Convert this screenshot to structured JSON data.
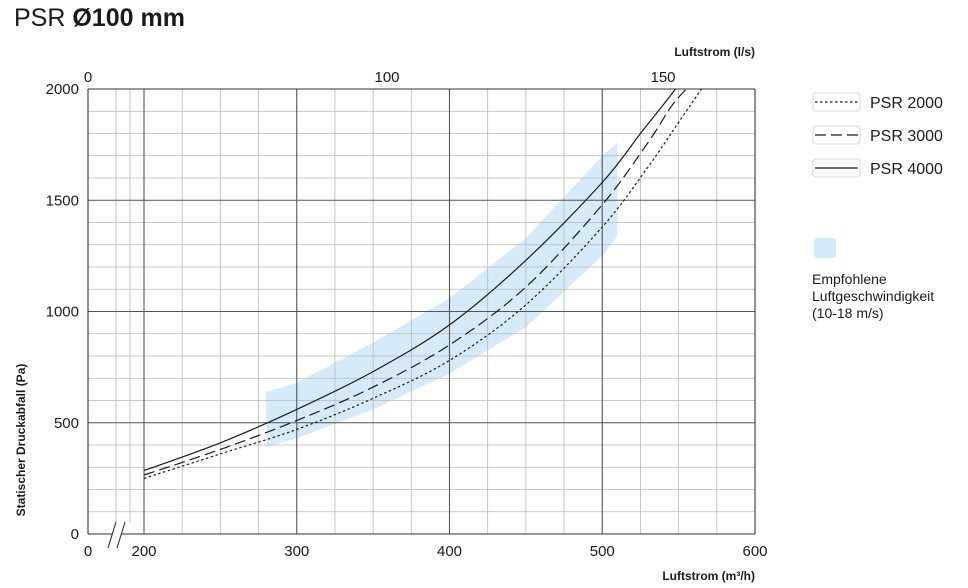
{
  "title": {
    "prefix": "PSR",
    "main": "Ø100 mm"
  },
  "chart_data": {
    "type": "line",
    "xlabel": "Luftstrom (m³/h)",
    "x2label": "Luftstrom (l/s)",
    "ylabel": "Statischer Druckabfall (Pa)",
    "xlim": [
      0,
      600
    ],
    "x_broken_below": 200,
    "ylim": [
      0,
      2000
    ],
    "x_ticks": [
      "0",
      "200",
      "300",
      "400",
      "500",
      "600"
    ],
    "x2_ticks": [
      "0",
      "100",
      "150"
    ],
    "y_ticks": [
      "0",
      "500",
      "1000",
      "1500",
      "2000"
    ],
    "grid": true,
    "legend_position": "right",
    "series": [
      {
        "name": "PSR 2000",
        "style": "dotted",
        "color": "#1a1a1a",
        "x": [
          200,
          250,
          300,
          350,
          400,
          450,
          500,
          530,
          550,
          565
        ],
        "y": [
          250,
          360,
          470,
          610,
          780,
          1030,
          1380,
          1650,
          1850,
          2000
        ]
      },
      {
        "name": "PSR 3000",
        "style": "dashed",
        "color": "#1a1a1a",
        "x": [
          200,
          250,
          300,
          350,
          400,
          450,
          500,
          530,
          545,
          555
        ],
        "y": [
          265,
          380,
          510,
          660,
          850,
          1110,
          1480,
          1760,
          1920,
          2000
        ]
      },
      {
        "name": "PSR 4000",
        "style": "solid",
        "color": "#1a1a1a",
        "x": [
          200,
          250,
          300,
          350,
          400,
          450,
          500,
          525,
          540,
          548
        ],
        "y": [
          285,
          410,
          560,
          730,
          940,
          1230,
          1580,
          1800,
          1930,
          2000
        ]
      }
    ],
    "band": {
      "label_lines": [
        "Empfohlene",
        "Luftgeschwindigkeit",
        "(10-18 m/s)"
      ],
      "color": "#d6ebf9",
      "x": [
        280,
        300,
        350,
        400,
        450,
        500,
        510
      ],
      "y_low": [
        390,
        430,
        560,
        720,
        930,
        1250,
        1340
      ],
      "y_high": [
        640,
        680,
        860,
        1060,
        1330,
        1700,
        1760
      ]
    }
  }
}
